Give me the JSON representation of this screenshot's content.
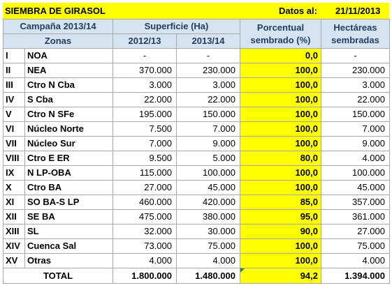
{
  "title": "SIEMBRA DE GIRASOL",
  "data_label": "Datos al:",
  "data_date": "21/11/2013",
  "campaign": "Campaña 2013/14",
  "surface_header": "Superficie (Ha)",
  "pct_header": [
    "Porcentual",
    "sembrado (%)"
  ],
  "hect_header": [
    "Hectáreas",
    "sembradas"
  ],
  "zones_header": "Zonas",
  "year_a": "2012/13",
  "year_b": "2013/14",
  "rows": [
    {
      "code": "I",
      "zone": "NOA",
      "a": "-",
      "b": "-",
      "pct": "0,0",
      "ha": "-"
    },
    {
      "code": "II",
      "zone": "NEA",
      "a": "370.000",
      "b": "230.000",
      "pct": "100,0",
      "ha": "230.000"
    },
    {
      "code": "III",
      "zone": "Ctro N Cba",
      "a": "3.000",
      "b": "3.000",
      "pct": "100,0",
      "ha": "3.000"
    },
    {
      "code": "IV",
      "zone": "S Cba",
      "a": "22.000",
      "b": "22.000",
      "pct": "100,0",
      "ha": "22.000"
    },
    {
      "code": "V",
      "zone": "Ctro N SFe",
      "a": "195.000",
      "b": "150.000",
      "pct": "100,0",
      "ha": "150.000"
    },
    {
      "code": "VI",
      "zone": "Núcleo Norte",
      "a": "7.500",
      "b": "7.000",
      "pct": "100,0",
      "ha": "7.000"
    },
    {
      "code": "VII",
      "zone": "Núcleo Sur",
      "a": "7.000",
      "b": "9.000",
      "pct": "100,0",
      "ha": "9.000"
    },
    {
      "code": "VIII",
      "zone": "Ctro E ER",
      "a": "9.500",
      "b": "5.000",
      "pct": "80,0",
      "ha": "4.000"
    },
    {
      "code": "IX",
      "zone": "N LP-OBA",
      "a": "115.000",
      "b": "100.000",
      "pct": "100,0",
      "ha": "100.000"
    },
    {
      "code": "X",
      "zone": "Ctro BA",
      "a": "27.000",
      "b": "45.000",
      "pct": "100,0",
      "ha": "45.000"
    },
    {
      "code": "XI",
      "zone": "SO BA-S LP",
      "a": "460.000",
      "b": "420.000",
      "pct": "85,0",
      "ha": "357.000"
    },
    {
      "code": "XII",
      "zone": "SE BA",
      "a": "475.000",
      "b": "380.000",
      "pct": "95,0",
      "ha": "361.000"
    },
    {
      "code": "XIII",
      "zone": "SL",
      "a": "32.000",
      "b": "30.000",
      "pct": "90,0",
      "ha": "27.000"
    },
    {
      "code": "XIV",
      "zone": "Cuenca Sal",
      "a": "73.000",
      "b": "75.000",
      "pct": "100,0",
      "ha": "75.000"
    },
    {
      "code": "XV",
      "zone": "Otras",
      "a": "4.000",
      "b": "4.000",
      "pct": "100,0",
      "ha": "4.000"
    }
  ],
  "total": {
    "label": "TOTAL",
    "a": "1.800.000",
    "b": "1.480.000",
    "pct": "94,2",
    "ha": "1.394.000"
  },
  "colors": {
    "highlight": "#ffff00",
    "header_bg": "#d6e4f1",
    "header_text": "#1f3d5c"
  }
}
